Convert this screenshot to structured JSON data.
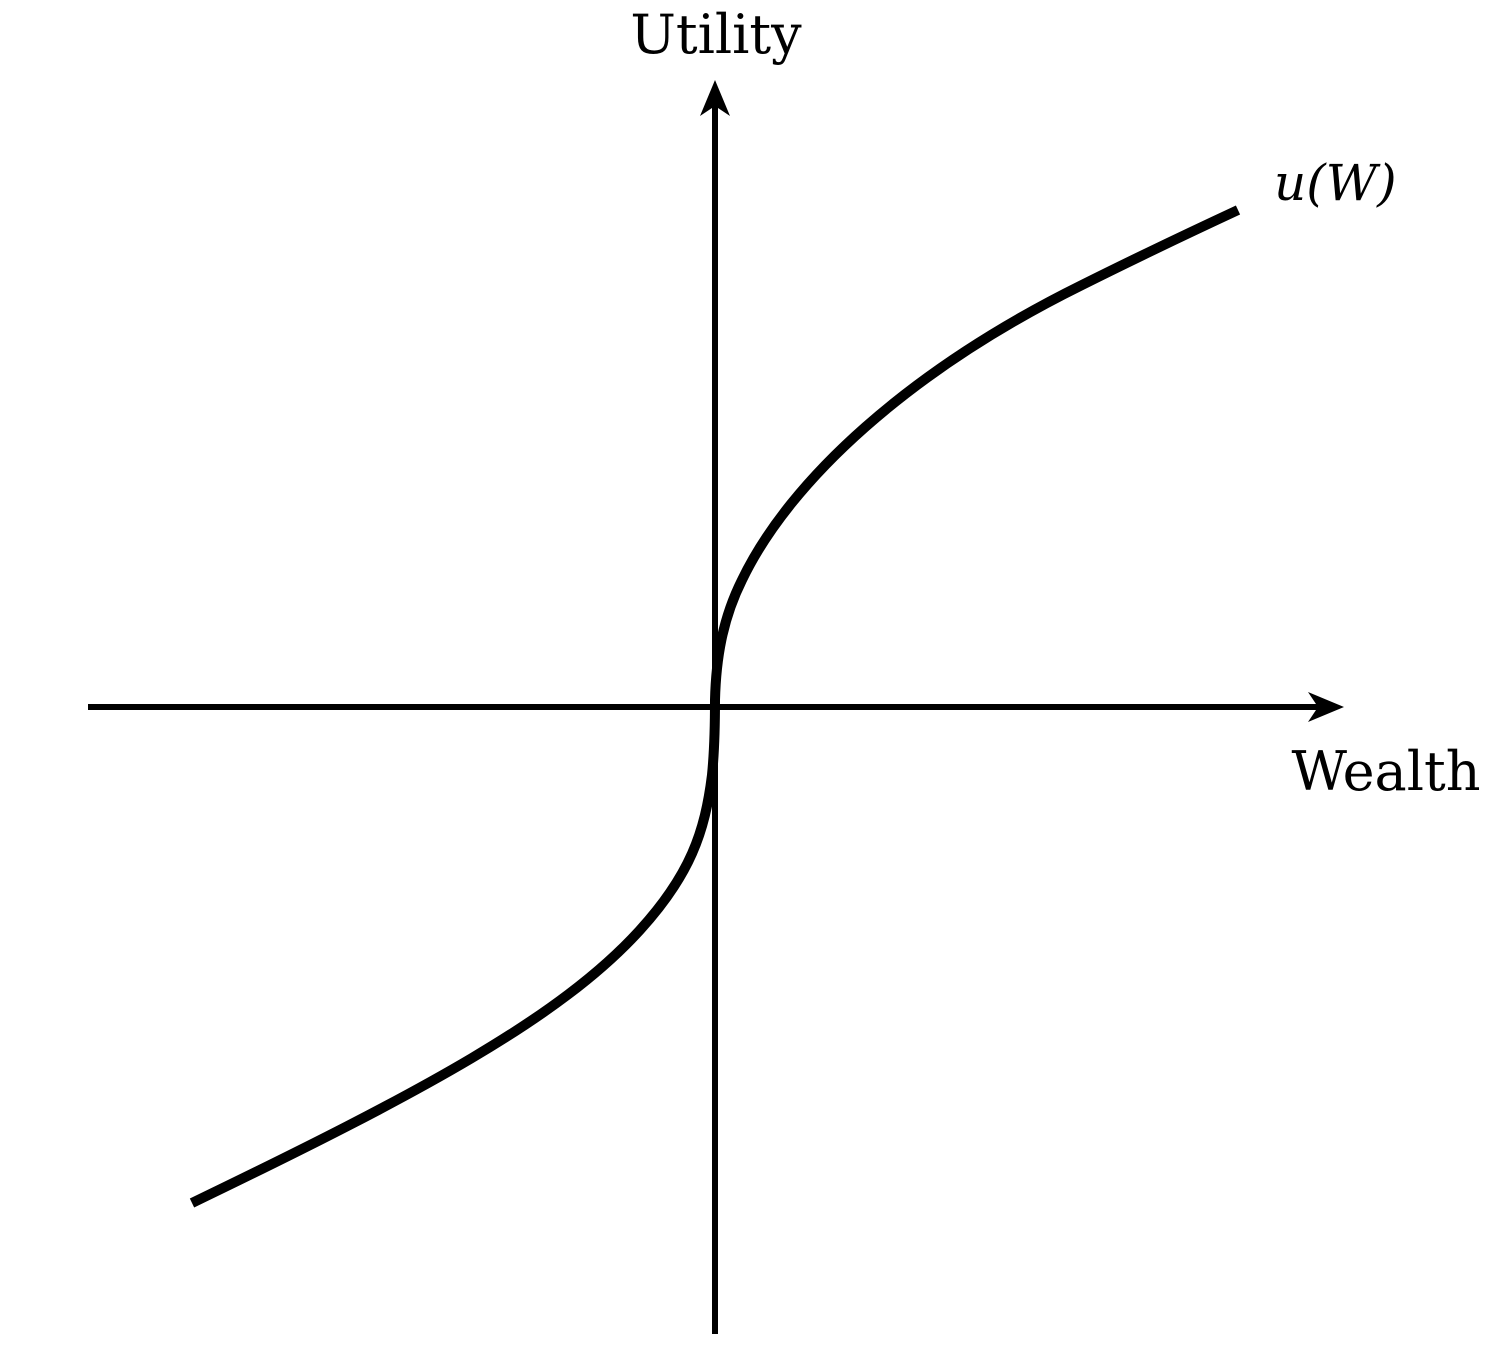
{
  "diagram": {
    "y_axis_label": "Utility",
    "x_axis_label": "Wealth",
    "curve_label": "u(W)",
    "colors": {
      "background": "#ffffff",
      "stroke": "#000000"
    }
  }
}
